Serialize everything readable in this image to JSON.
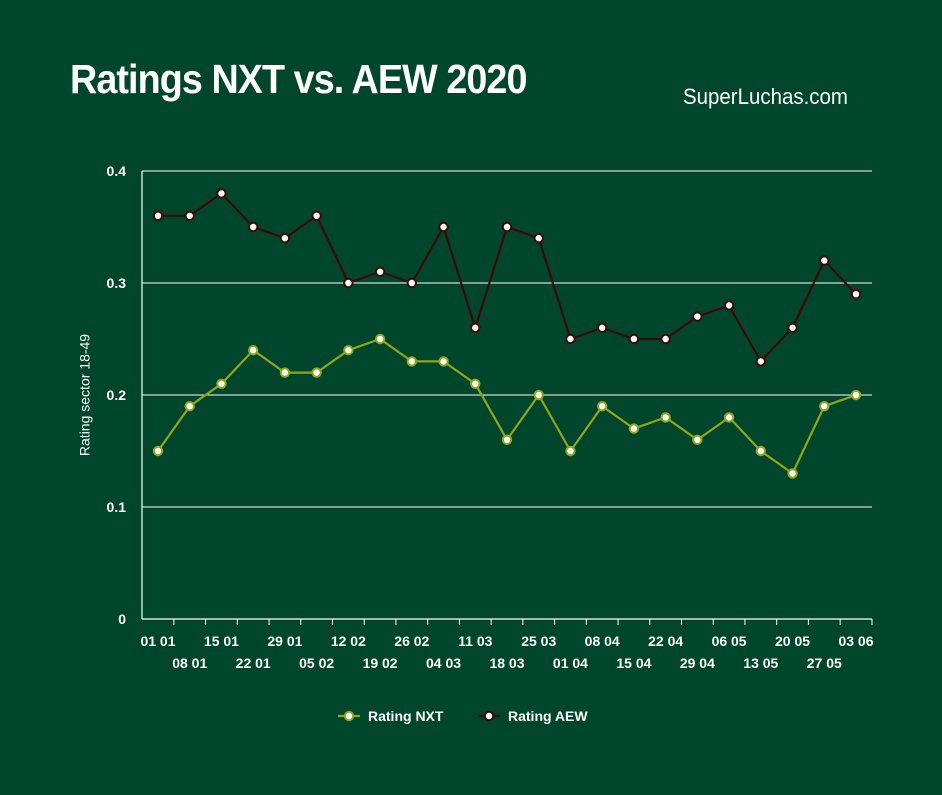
{
  "chart_data": {
    "type": "line",
    "title": "Ratings NXT vs. AEW 2020",
    "source": "SuperLuchas.com",
    "ylabel": "Rating sector 18-49",
    "xlabel": "",
    "ylim": [
      0,
      0.4
    ],
    "yticks": [
      "0",
      "0.1",
      "0.2",
      "0.3",
      "0.4"
    ],
    "grid": true,
    "legend_position": "bottom",
    "categories": [
      "01 01",
      "08 01",
      "15 01",
      "22 01",
      "29 01",
      "05 02",
      "12 02",
      "19 02",
      "26 02",
      "04 03",
      "11 03",
      "18 03",
      "25 03",
      "01 04",
      "08 04",
      "15 04",
      "22 04",
      "29 04",
      "06 05",
      "13 05",
      "20 05",
      "27 05",
      "03 06"
    ],
    "series": [
      {
        "name": "Rating NXT",
        "color": "#8fa617",
        "values": [
          0.15,
          0.19,
          0.21,
          0.24,
          0.22,
          0.22,
          0.24,
          0.25,
          0.23,
          0.23,
          0.21,
          0.16,
          0.2,
          0.15,
          0.19,
          0.17,
          0.18,
          0.16,
          0.18,
          0.15,
          0.13,
          0.19,
          0.2
        ]
      },
      {
        "name": "Rating AEW",
        "color": "#3a0a0a",
        "values": [
          0.36,
          0.36,
          0.38,
          0.35,
          0.34,
          0.36,
          0.3,
          0.31,
          0.3,
          0.35,
          0.26,
          0.35,
          0.34,
          0.25,
          0.26,
          0.25,
          0.25,
          0.27,
          0.28,
          0.23,
          0.26,
          0.32,
          0.29
        ]
      }
    ]
  }
}
